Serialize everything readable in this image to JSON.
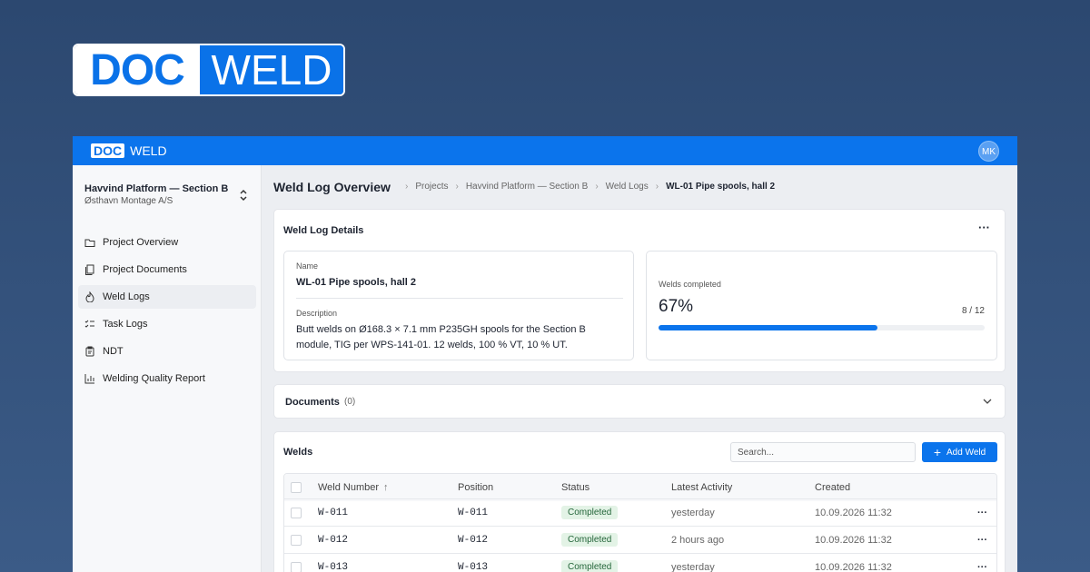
{
  "brand": {
    "logo_left": "DOC",
    "logo_right": "WELD"
  },
  "topbar": {
    "logo_left": "DOC",
    "logo_right": "WELD",
    "avatar": "MK"
  },
  "sidebar": {
    "project": "Havvind Platform — Section B",
    "company": "Østhavn Montage A/S",
    "nav": [
      "Project Overview",
      "Project Documents",
      "Weld Logs",
      "Task Logs",
      "NDT",
      "Welding Quality Report"
    ],
    "active": 2
  },
  "header": {
    "title": "Weld Log Overview",
    "breadcrumbs": [
      "Projects",
      "Havvind Platform — Section B",
      "Weld Logs",
      "WL-01 Pipe spools, hall 2"
    ]
  },
  "details": {
    "title": "Weld Log Details",
    "name_label": "Name",
    "name": "WL-01 Pipe spools, hall 2",
    "description_label": "Description",
    "description": "Butt welds on Ø168.3 × 7.1 mm P235GH spools for the Section B module, TIG per WPS-141-01. 12 welds, 100 % VT, 10 % UT.",
    "progress_label": "Welds completed",
    "progress": {
      "value": 67,
      "label": "67%"
    },
    "count": "8 / 12"
  },
  "documents": {
    "title": "Documents",
    "count": "(0)"
  },
  "welds": {
    "title": "Welds",
    "search_placeholder": "Search...",
    "add_button": "Add Weld",
    "columns": [
      "Weld Number",
      "Position",
      "Status",
      "Latest Activity",
      "Created"
    ],
    "rows": [
      [
        "W-011",
        "W-011",
        "Completed",
        "yesterday",
        "10.09.2026 11:32"
      ],
      [
        "W-012",
        "W-012",
        "Completed",
        "2 hours ago",
        "10.09.2026 11:32"
      ],
      [
        "W-013",
        "W-013",
        "Completed",
        "yesterday",
        "10.09.2026 11:32"
      ]
    ]
  }
}
